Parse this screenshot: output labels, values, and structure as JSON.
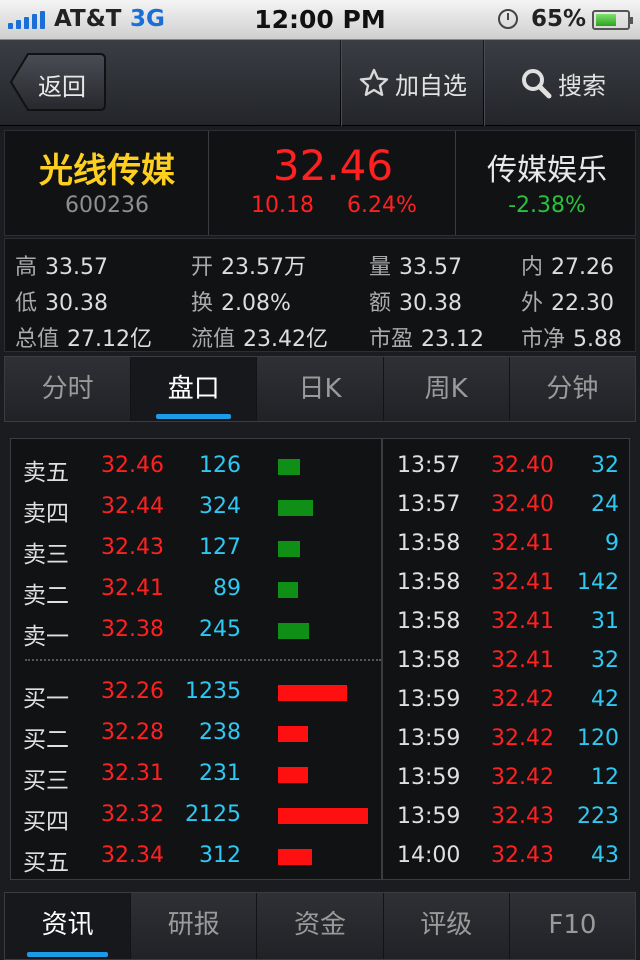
{
  "status_bar": {
    "carrier": "AT&T",
    "network": "3G",
    "time": "12:00 PM",
    "battery": "65%",
    "battery_level": 0.65
  },
  "nav": {
    "back_label": "返回",
    "add_watch_label": "加自选",
    "search_label": "搜索"
  },
  "stock": {
    "name": "光线传媒",
    "code": "600236",
    "price": "32.46",
    "change": "10.18",
    "change_pct": "6.24%",
    "sector": "传媒娱乐",
    "sector_change": "-2.38%"
  },
  "stats": [
    [
      {
        "k": "高",
        "v": "33.57"
      },
      {
        "k": "开",
        "v": "23.57万"
      },
      {
        "k": "量",
        "v": "33.57"
      },
      {
        "k": "内",
        "v": "27.26"
      }
    ],
    [
      {
        "k": "低",
        "v": "30.38"
      },
      {
        "k": "换",
        "v": "2.08%"
      },
      {
        "k": "额",
        "v": "30.38"
      },
      {
        "k": "外",
        "v": "22.30"
      }
    ],
    [
      {
        "k": "总值",
        "v": "27.12亿"
      },
      {
        "k": "流值",
        "v": "23.42亿"
      },
      {
        "k": "市盈",
        "v": "23.12"
      },
      {
        "k": "市净",
        "v": "5.88"
      }
    ]
  ],
  "tabs": [
    "分时",
    "盘口",
    "日K",
    "周K",
    "分钟"
  ],
  "active_tab": 1,
  "sell_orders": [
    {
      "label": "卖五",
      "price": "32.46",
      "volume": "126"
    },
    {
      "label": "卖四",
      "price": "32.44",
      "volume": "324"
    },
    {
      "label": "卖三",
      "price": "32.43",
      "volume": "127"
    },
    {
      "label": "卖二",
      "price": "32.41",
      "volume": "89"
    },
    {
      "label": "卖一",
      "price": "32.38",
      "volume": "245"
    }
  ],
  "buy_orders": [
    {
      "label": "买一",
      "price": "32.26",
      "volume": "1235"
    },
    {
      "label": "买二",
      "price": "32.28",
      "volume": "238"
    },
    {
      "label": "买三",
      "price": "32.31",
      "volume": "231"
    },
    {
      "label": "买四",
      "price": "32.32",
      "volume": "2125"
    },
    {
      "label": "买五",
      "price": "32.34",
      "volume": "312"
    }
  ],
  "trades": [
    {
      "time": "13:57",
      "price": "32.40",
      "volume": "32"
    },
    {
      "time": "13:57",
      "price": "32.40",
      "volume": "24"
    },
    {
      "time": "13:58",
      "price": "32.41",
      "volume": "9"
    },
    {
      "time": "13:58",
      "price": "32.41",
      "volume": "142"
    },
    {
      "time": "13:58",
      "price": "32.41",
      "volume": "31"
    },
    {
      "time": "13:58",
      "price": "32.41",
      "volume": "32"
    },
    {
      "time": "13:59",
      "price": "32.42",
      "volume": "42"
    },
    {
      "time": "13:59",
      "price": "32.42",
      "volume": "120"
    },
    {
      "time": "13:59",
      "price": "32.42",
      "volume": "12"
    },
    {
      "time": "13:59",
      "price": "32.43",
      "volume": "223"
    },
    {
      "time": "14:00",
      "price": "32.43",
      "volume": "43"
    }
  ],
  "bottom_tabs": [
    "资讯",
    "研报",
    "资金",
    "评级",
    "F10"
  ],
  "active_bottom_tab": 0,
  "colors": {
    "up": "#ff2020",
    "down": "#27c13b",
    "volume": "#2ec8f2",
    "name": "#ffcf1f",
    "accent": "#1c9ce8"
  }
}
